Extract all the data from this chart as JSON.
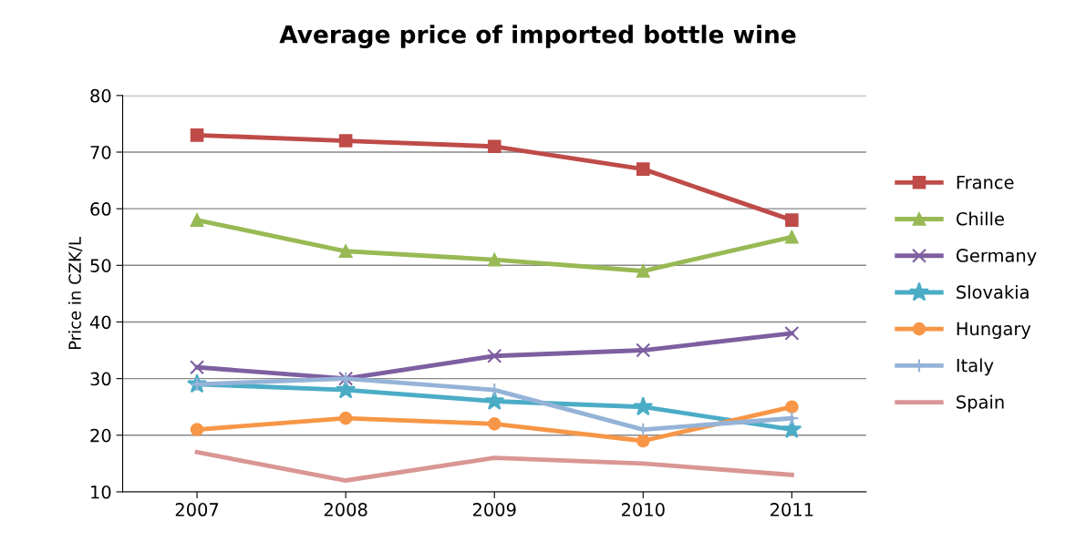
{
  "chart_data": {
    "type": "line",
    "title": "Average price of imported bottle wine",
    "ylabel": "Price in CZK/L",
    "categories": [
      "2007",
      "2008",
      "2009",
      "2010",
      "2011"
    ],
    "series": [
      {
        "name": "France",
        "color": "#be4b48",
        "marker": "square",
        "values": [
          73,
          72,
          71,
          67,
          58
        ]
      },
      {
        "name": "Chille",
        "color": "#98b954",
        "marker": "triangle",
        "values": [
          58,
          52.5,
          51,
          49,
          55
        ]
      },
      {
        "name": "Germany",
        "color": "#7d5fa0",
        "marker": "cross",
        "values": [
          32,
          30,
          34,
          35,
          38
        ]
      },
      {
        "name": "Slovakia",
        "color": "#4bacc6",
        "marker": "star",
        "values": [
          29,
          28,
          26,
          25,
          21
        ]
      },
      {
        "name": "Hungary",
        "color": "#f79646",
        "marker": "circle",
        "values": [
          21,
          23,
          22,
          19,
          25
        ]
      },
      {
        "name": "Italy",
        "color": "#95b3d7",
        "marker": "plus",
        "values": [
          29,
          30,
          28,
          21,
          23
        ]
      },
      {
        "name": "Spain",
        "color": "#d99694",
        "marker": "none",
        "values": [
          17,
          12,
          16,
          15,
          13
        ]
      }
    ],
    "ylim": [
      10,
      80
    ],
    "yticks": [
      10,
      20,
      30,
      40,
      50,
      60,
      70,
      80
    ],
    "grid": "y",
    "legend": "right",
    "line_style": "solid"
  }
}
